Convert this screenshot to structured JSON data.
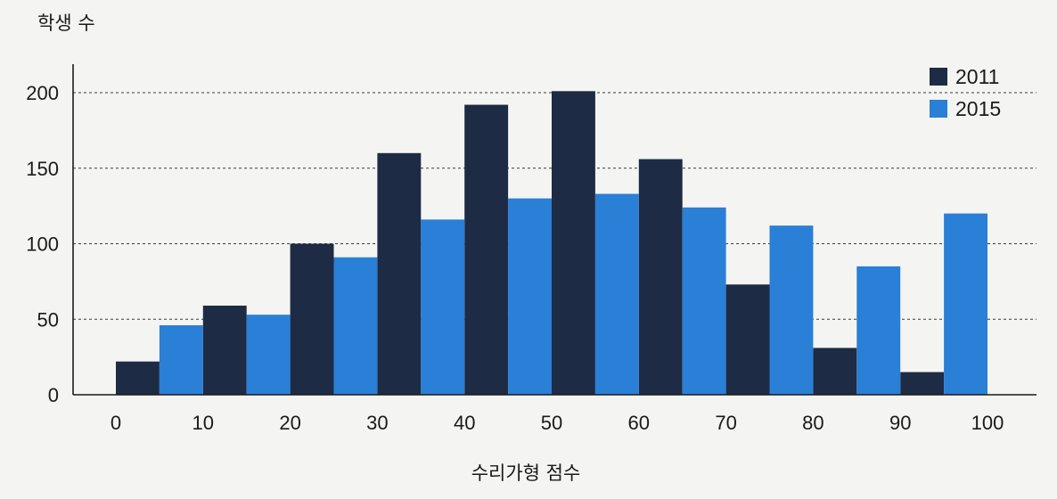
{
  "chart_data": {
    "type": "bar",
    "ylabel": "학생 수",
    "xlabel": "수리가형 점수",
    "ylim": [
      0,
      220
    ],
    "yticks": [
      0,
      50,
      100,
      150,
      200
    ],
    "xlim": [
      0,
      100
    ],
    "xticks": [
      0,
      10,
      20,
      30,
      40,
      50,
      60,
      70,
      80,
      90,
      100
    ],
    "grid": "horizontal dashed",
    "legend_position": "top-right",
    "series": [
      {
        "name": "2011",
        "color": "#1e2b45",
        "x": [
          5,
          15,
          25,
          35,
          45,
          55,
          65,
          75,
          85,
          95
        ],
        "values": [
          22,
          59,
          100,
          160,
          192,
          201,
          156,
          73,
          31,
          15
        ]
      },
      {
        "name": "2015",
        "color": "#2a7fd6",
        "x": [
          10,
          20,
          30,
          40,
          50,
          60,
          70,
          80,
          90,
          100
        ],
        "values": [
          46,
          53,
          91,
          116,
          130,
          133,
          124,
          112,
          85,
          120
        ]
      }
    ]
  }
}
